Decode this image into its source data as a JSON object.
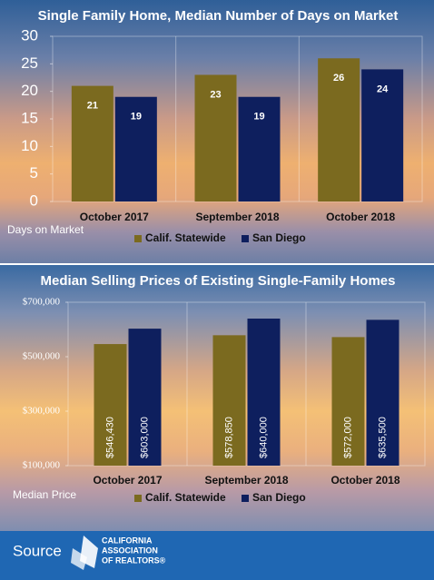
{
  "chart_data": [
    {
      "type": "bar",
      "title": "Single Family Home, Median Number of Days on Market",
      "y_label": "Days on Market",
      "categories": [
        "October 2017",
        "September 2018",
        "October 2018"
      ],
      "series": [
        {
          "name": "Calif. Statewide",
          "color": "#7b6a1f",
          "values": [
            21,
            23,
            26
          ]
        },
        {
          "name": "San Diego",
          "color": "#0e1f5e",
          "values": [
            19,
            19,
            24
          ]
        }
      ],
      "ylim": [
        0,
        30
      ],
      "yticks": [
        0,
        5,
        10,
        15,
        20,
        25,
        30
      ],
      "data_labels": "top"
    },
    {
      "type": "bar",
      "title": "Median Selling Prices of Existing Single-Family Homes",
      "y_label": "Median Price",
      "categories": [
        "October 2017",
        "September 2018",
        "October 2018"
      ],
      "series": [
        {
          "name": "Calif. Statewide",
          "color": "#7b6a1f",
          "values": [
            546430,
            578850,
            572000
          ],
          "value_labels": [
            "$546,430",
            "$578,850",
            "$572,000"
          ]
        },
        {
          "name": "San Diego",
          "color": "#0e1f5e",
          "values": [
            603000,
            640000,
            635500
          ],
          "value_labels": [
            "$603,000",
            "$640,000",
            "$635,500"
          ]
        }
      ],
      "ylim": [
        100000,
        700000
      ],
      "yticks": [
        {
          "value": 100000,
          "label": "$100,000"
        },
        {
          "value": 300000,
          "label": "$300,000"
        },
        {
          "value": 500000,
          "label": "$500,000"
        },
        {
          "value": 700000,
          "label": "$700,000"
        }
      ],
      "data_labels": "rotated"
    }
  ],
  "footer": {
    "source": "Source",
    "logo": [
      "CALIFORNIA",
      "ASSOCIATION",
      "OF REALTORS®"
    ]
  }
}
